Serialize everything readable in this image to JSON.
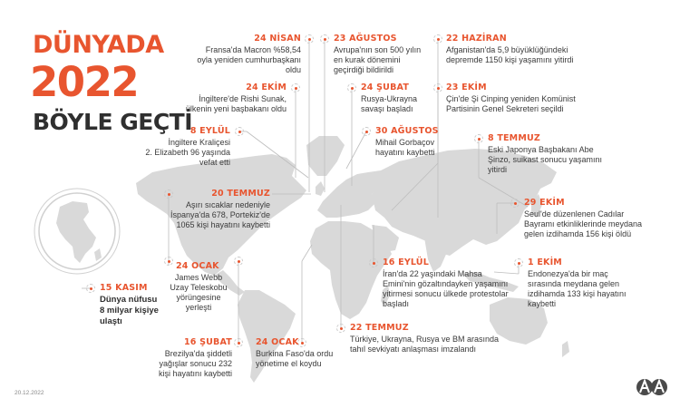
{
  "title": {
    "line1": "DÜNYADA",
    "line2": "2022",
    "line3": "BÖYLE GEÇTİ"
  },
  "footer": {
    "date": "20.12.2022",
    "logo": "aa-logo"
  },
  "colors": {
    "accent": "#e8552f",
    "map": "#d9d9d9",
    "text": "#3a3a3a"
  },
  "events": {
    "nisan24": {
      "date": "24 NİSAN",
      "text": "Fransa'da Macron %58,54\noyla yeniden cumhurbaşkanı\noldu"
    },
    "agustos23": {
      "date": "23 AĞUSTOS",
      "text": "Avrupa'nın son 500 yılın\nen kurak dönemini\ngeçirdiği bildirildi"
    },
    "haziran22": {
      "date": "22 HAZİRAN",
      "text": "Afganistan'da 5,9 büyüklüğündeki\ndepremde 1150 kişi yaşamını yitirdi"
    },
    "ekim24": {
      "date": "24 EKİM",
      "text": "İngiltere'de Rishi Sunak,\nülkenin yeni başbakanı oldu"
    },
    "subat24": {
      "date": "24 ŞUBAT",
      "text": "Rusya-Ukrayna\nsavaşı başladı"
    },
    "ekim23": {
      "date": "23 EKİM",
      "text": "Çin'de Şi Cinping yeniden Komünist\nPartisinin Genel Sekreteri seçildi"
    },
    "eylul8": {
      "date": "8 EYLÜL",
      "text": "İngiltere Kraliçesi\n2. Elizabeth 96 yaşında\nvefat etti"
    },
    "agustos30": {
      "date": "30 AĞUSTOS",
      "text": "Mihail Gorbaçov\nhayatını kaybetti"
    },
    "temmuz8": {
      "date": "8 TEMMUZ",
      "text": "Eski Japonya Başbakanı Abe\nŞinzo, suikast sonucu yaşamını\nyitirdi"
    },
    "temmuz20": {
      "date": "20 TEMMUZ",
      "text": "Aşırı sıcaklar nedeniyle\nİspanya'da 678, Portekiz'de\n1065 kişi hayatını kaybetti"
    },
    "ekim29": {
      "date": "29 EKİM",
      "text": "Seul'de düzenlenen Cadılar\nBayramı etkinliklerinde meydana\ngelen izdihamda 156 kişi öldü"
    },
    "ocak24a": {
      "date": "24 OCAK",
      "text": "James Webb\nUzay Teleskobu\nyörüngesine\nyerleşti"
    },
    "eylul16": {
      "date": "16 EYLÜL",
      "text": "İran'da 22 yaşındaki Mahsa\nEmini'nin gözaltındayken yaşamını\nyitirmesi sonucu ülkede protestolar\nbaşladı"
    },
    "ekim1": {
      "date": "1 EKİM",
      "text": "Endonezya'da bir maç\nsırasında meydana gelen\nizdihamda 133 kişi hayatını\nkaybetti"
    },
    "kasim15": {
      "date": "15 KASIM",
      "text": "Dünya nüfusu\n8 milyar kişiye\nulaştı"
    },
    "subat16": {
      "date": "16 ŞUBAT",
      "text": "Brezilya'da şiddetli\nyağışlar sonucu 232\nkişi hayatını kaybetti"
    },
    "ocak24b": {
      "date": "24 OCAK",
      "text": "Burkina Faso'da ordu\nyönetime el koydu"
    },
    "temmuz22": {
      "date": "22 TEMMUZ",
      "text": "Türkiye, Ukrayna, Rusya ve BM arasında\ntahıl sevkiyatı anlaşması imzalandı"
    }
  }
}
